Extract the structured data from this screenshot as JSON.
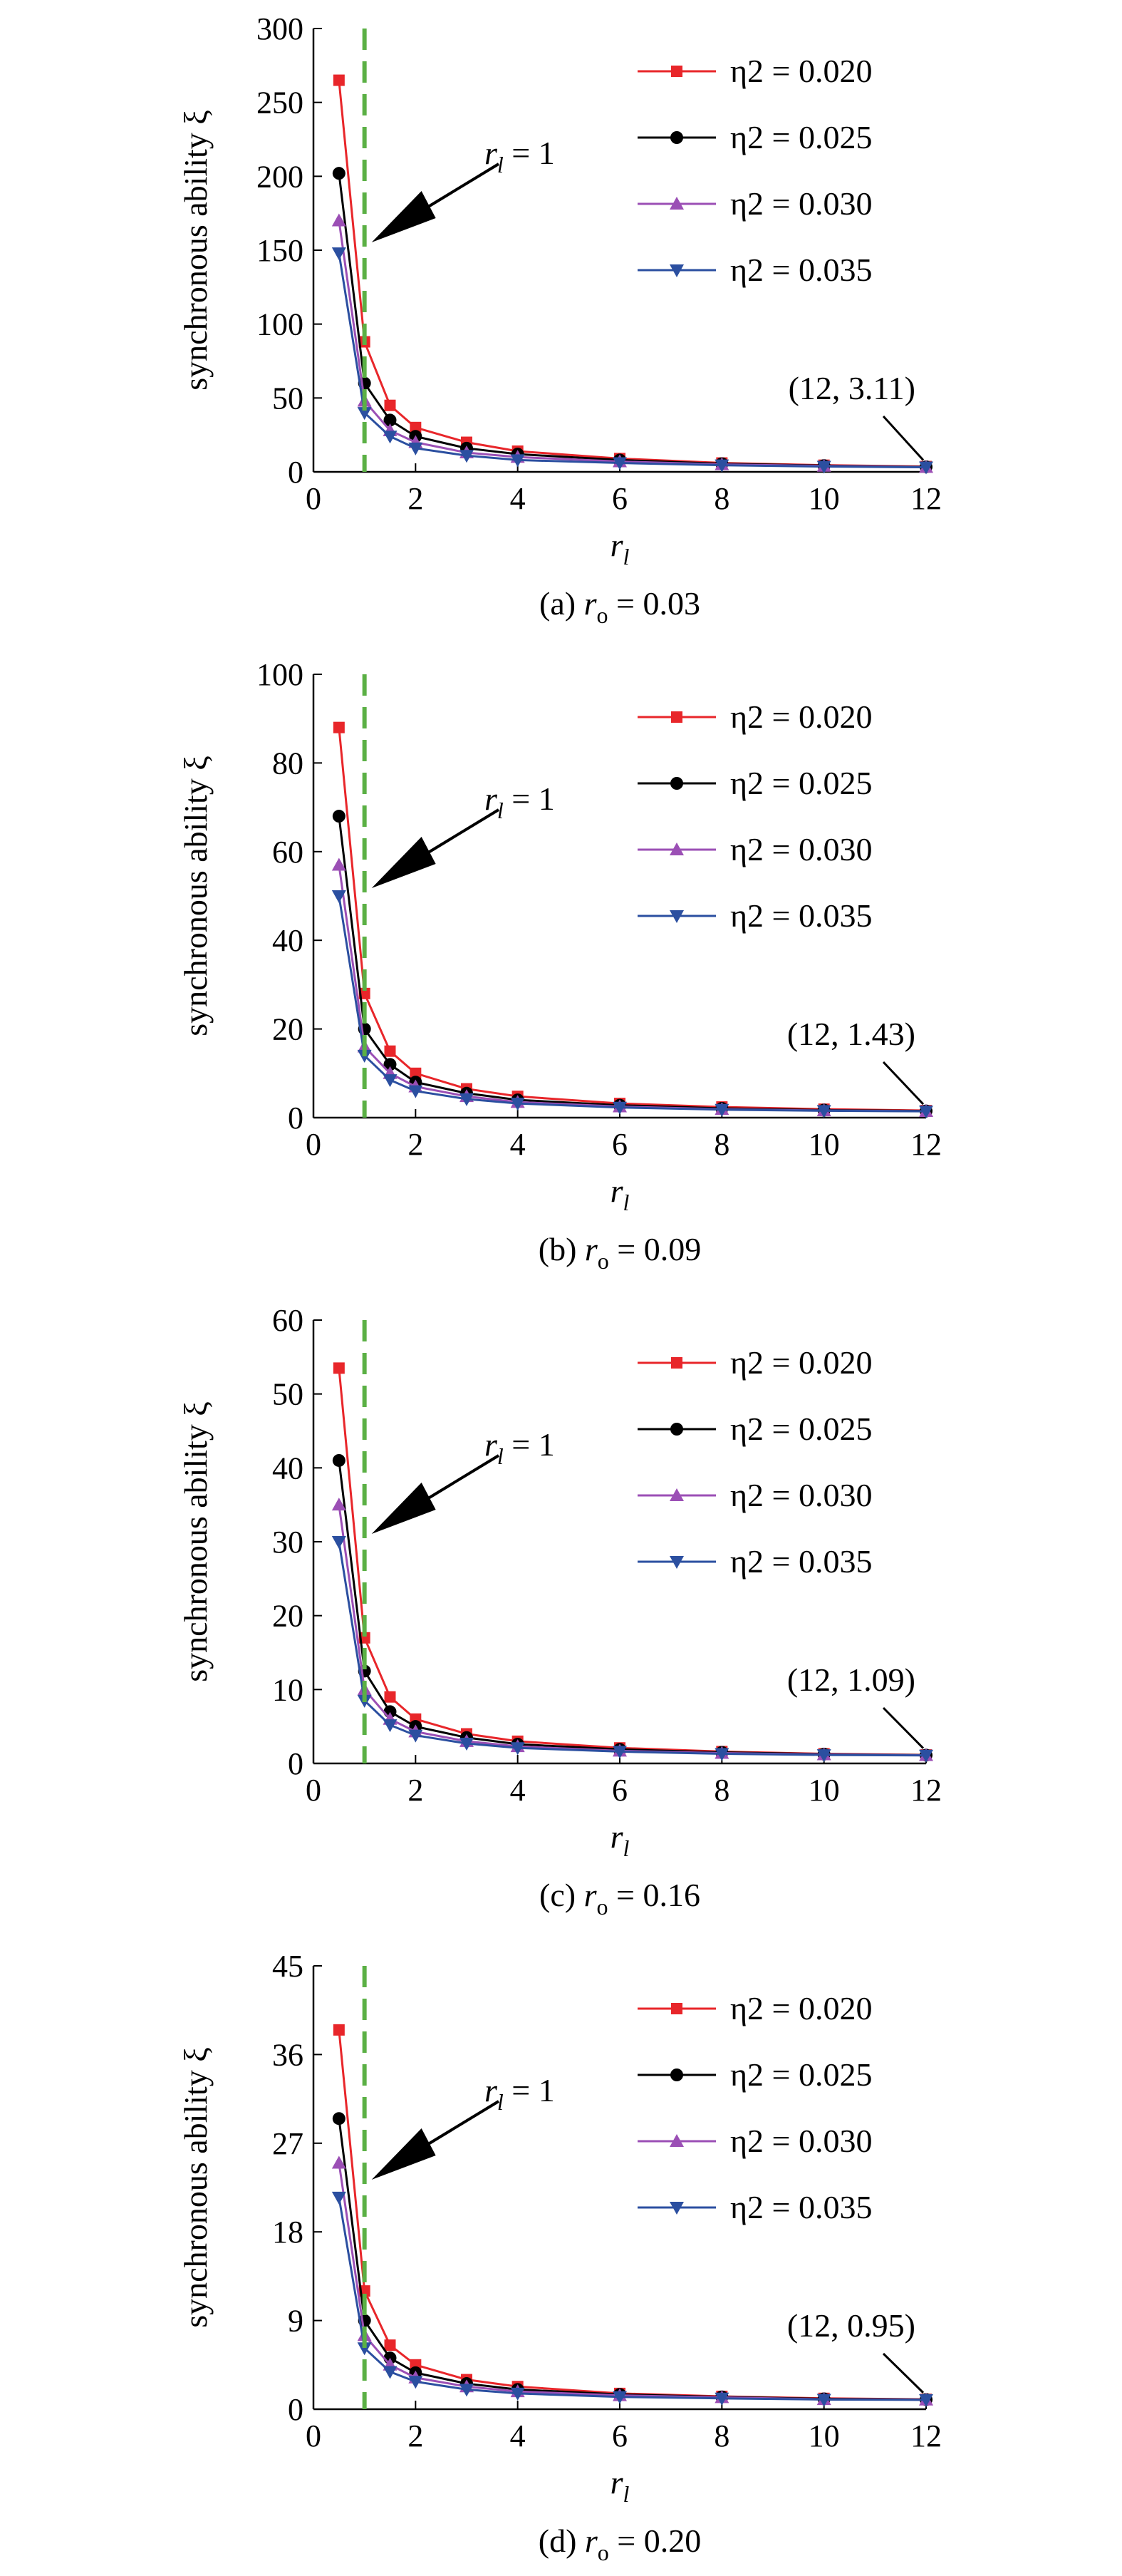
{
  "chart_data": [
    {
      "type": "line",
      "caption": {
        "label": "(a) ",
        "var": "r",
        "sub": "o",
        "value": " = 0.03"
      },
      "ylabel": "synchronous ability ξ",
      "xlabel": {
        "var": "r",
        "sub": "l"
      },
      "xlim": [
        0,
        12
      ],
      "ylim": [
        0,
        300
      ],
      "xticks": [
        0,
        2,
        4,
        6,
        8,
        10,
        12
      ],
      "yticks": [
        0,
        50,
        100,
        150,
        200,
        250,
        300
      ],
      "grid": false,
      "legend_position": "top-right",
      "series": [
        {
          "name": "η2 = 0.020",
          "color": "#e8262a",
          "marker": "square",
          "x": [
            0.5,
            1,
            1.5,
            2,
            3,
            4,
            6,
            8,
            10,
            12
          ],
          "values": [
            265,
            88,
            45,
            30,
            20,
            14,
            9,
            6,
            4.5,
            3.6
          ]
        },
        {
          "name": "η2 = 0.025",
          "color": "#000000",
          "marker": "circle",
          "x": [
            0.5,
            1,
            1.5,
            2,
            3,
            4,
            6,
            8,
            10,
            12
          ],
          "values": [
            202,
            60,
            35,
            24,
            16,
            12,
            8,
            5.5,
            4.2,
            3.4
          ]
        },
        {
          "name": "η2 = 0.030",
          "color": "#9b4fb5",
          "marker": "triangle-up",
          "x": [
            0.5,
            1,
            1.5,
            2,
            3,
            4,
            6,
            8,
            10,
            12
          ],
          "values": [
            170,
            48,
            28,
            20,
            13,
            10,
            7,
            5,
            4,
            3.2
          ]
        },
        {
          "name": "η2 = 0.035",
          "color": "#2b4fa0",
          "marker": "triangle-down",
          "x": [
            0.5,
            1,
            1.5,
            2,
            3,
            4,
            6,
            8,
            10,
            12
          ],
          "values": [
            148,
            40,
            24,
            16,
            11,
            8,
            6,
            4.5,
            3.6,
            3.11
          ]
        }
      ],
      "vline": {
        "x": 1,
        "color": "#5bb045",
        "label": {
          "var": "r",
          "sub": "l",
          "value": " = 1"
        }
      },
      "endpoint_annotation": "(12, 3.11)"
    },
    {
      "type": "line",
      "caption": {
        "label": "(b) ",
        "var": "r",
        "sub": "o",
        "value": " = 0.09"
      },
      "ylabel": "synchronous ability ξ",
      "xlabel": {
        "var": "r",
        "sub": "l"
      },
      "xlim": [
        0,
        12
      ],
      "ylim": [
        0,
        100
      ],
      "xticks": [
        0,
        2,
        4,
        6,
        8,
        10,
        12
      ],
      "yticks": [
        0,
        20,
        40,
        60,
        80,
        100
      ],
      "grid": false,
      "legend_position": "top-right",
      "series": [
        {
          "name": "η2 = 0.020",
          "color": "#e8262a",
          "marker": "square",
          "x": [
            0.5,
            1,
            1.5,
            2,
            3,
            4,
            6,
            8,
            10,
            12
          ],
          "values": [
            88,
            28,
            15,
            10,
            6.5,
            4.8,
            3.2,
            2.4,
            1.9,
            1.6
          ]
        },
        {
          "name": "η2 = 0.025",
          "color": "#000000",
          "marker": "circle",
          "x": [
            0.5,
            1,
            1.5,
            2,
            3,
            4,
            6,
            8,
            10,
            12
          ],
          "values": [
            68,
            20,
            12,
            8,
            5.5,
            4,
            2.8,
            2.1,
            1.7,
            1.5
          ]
        },
        {
          "name": "η2 = 0.030",
          "color": "#9b4fb5",
          "marker": "triangle-up",
          "x": [
            0.5,
            1,
            1.5,
            2,
            3,
            4,
            6,
            8,
            10,
            12
          ],
          "values": [
            57,
            16,
            10,
            7,
            4.8,
            3.5,
            2.5,
            1.9,
            1.6,
            1.45
          ]
        },
        {
          "name": "η2 = 0.035",
          "color": "#2b4fa0",
          "marker": "triangle-down",
          "x": [
            0.5,
            1,
            1.5,
            2,
            3,
            4,
            6,
            8,
            10,
            12
          ],
          "values": [
            50,
            14,
            8.5,
            6,
            4.2,
            3.2,
            2.3,
            1.8,
            1.55,
            1.43
          ]
        }
      ],
      "vline": {
        "x": 1,
        "color": "#5bb045",
        "label": {
          "var": "r",
          "sub": "l",
          "value": " = 1"
        }
      },
      "endpoint_annotation": "(12, 1.43)"
    },
    {
      "type": "line",
      "caption": {
        "label": "(c) ",
        "var": "r",
        "sub": "o",
        "value": " = 0.16"
      },
      "ylabel": "synchronous ability ξ",
      "xlabel": {
        "var": "r",
        "sub": "l"
      },
      "xlim": [
        0,
        12
      ],
      "ylim": [
        0,
        60
      ],
      "xticks": [
        0,
        2,
        4,
        6,
        8,
        10,
        12
      ],
      "yticks": [
        0,
        10,
        20,
        30,
        40,
        50,
        60
      ],
      "grid": false,
      "legend_position": "top-right",
      "series": [
        {
          "name": "η2 = 0.020",
          "color": "#e8262a",
          "marker": "square",
          "x": [
            0.5,
            1,
            1.5,
            2,
            3,
            4,
            6,
            8,
            10,
            12
          ],
          "values": [
            53.5,
            17,
            9,
            6,
            4,
            3,
            2.1,
            1.6,
            1.3,
            1.15
          ]
        },
        {
          "name": "η2 = 0.025",
          "color": "#000000",
          "marker": "circle",
          "x": [
            0.5,
            1,
            1.5,
            2,
            3,
            4,
            6,
            8,
            10,
            12
          ],
          "values": [
            41,
            12.5,
            7,
            5,
            3.5,
            2.6,
            1.9,
            1.5,
            1.25,
            1.12
          ]
        },
        {
          "name": "η2 = 0.030",
          "color": "#9b4fb5",
          "marker": "triangle-up",
          "x": [
            0.5,
            1,
            1.5,
            2,
            3,
            4,
            6,
            8,
            10,
            12
          ],
          "values": [
            35,
            10,
            6,
            4.3,
            3,
            2.3,
            1.7,
            1.4,
            1.2,
            1.1
          ]
        },
        {
          "name": "η2 = 0.035",
          "color": "#2b4fa0",
          "marker": "triangle-down",
          "x": [
            0.5,
            1,
            1.5,
            2,
            3,
            4,
            6,
            8,
            10,
            12
          ],
          "values": [
            30,
            8.5,
            5.2,
            3.8,
            2.7,
            2.1,
            1.6,
            1.3,
            1.15,
            1.09
          ]
        }
      ],
      "vline": {
        "x": 1,
        "color": "#5bb045",
        "label": {
          "var": "r",
          "sub": "l",
          "value": " = 1"
        }
      },
      "endpoint_annotation": "(12, 1.09)"
    },
    {
      "type": "line",
      "caption": {
        "label": "(d) ",
        "var": "r",
        "sub": "o",
        "value": " = 0.20"
      },
      "ylabel": "synchronous ability ξ",
      "xlabel": {
        "var": "r",
        "sub": "l"
      },
      "xlim": [
        0,
        12
      ],
      "ylim": [
        0,
        45
      ],
      "xticks": [
        0,
        2,
        4,
        6,
        8,
        10,
        12
      ],
      "yticks": [
        0,
        9,
        18,
        27,
        36,
        45
      ],
      "grid": false,
      "legend_position": "top-right",
      "series": [
        {
          "name": "η2 = 0.020",
          "color": "#e8262a",
          "marker": "square",
          "x": [
            0.5,
            1,
            1.5,
            2,
            3,
            4,
            6,
            8,
            10,
            12
          ],
          "values": [
            38.5,
            12,
            6.5,
            4.5,
            3,
            2.3,
            1.6,
            1.3,
            1.1,
            1.0
          ]
        },
        {
          "name": "η2 = 0.025",
          "color": "#000000",
          "marker": "circle",
          "x": [
            0.5,
            1,
            1.5,
            2,
            3,
            4,
            6,
            8,
            10,
            12
          ],
          "values": [
            29.5,
            9,
            5.2,
            3.7,
            2.6,
            2,
            1.5,
            1.25,
            1.05,
            0.98
          ]
        },
        {
          "name": "η2 = 0.030",
          "color": "#9b4fb5",
          "marker": "triangle-up",
          "x": [
            0.5,
            1,
            1.5,
            2,
            3,
            4,
            6,
            8,
            10,
            12
          ],
          "values": [
            25,
            7.5,
            4.5,
            3.2,
            2.3,
            1.8,
            1.4,
            1.2,
            1.0,
            0.96
          ]
        },
        {
          "name": "η2 = 0.035",
          "color": "#2b4fa0",
          "marker": "triangle-down",
          "x": [
            0.5,
            1,
            1.5,
            2,
            3,
            4,
            6,
            8,
            10,
            12
          ],
          "values": [
            21.5,
            6.2,
            3.8,
            2.8,
            2,
            1.6,
            1.25,
            1.1,
            0.98,
            0.95
          ]
        }
      ],
      "vline": {
        "x": 1,
        "color": "#5bb045",
        "label": {
          "var": "r",
          "sub": "l",
          "value": " = 1"
        }
      },
      "endpoint_annotation": "(12, 0.95)"
    }
  ]
}
